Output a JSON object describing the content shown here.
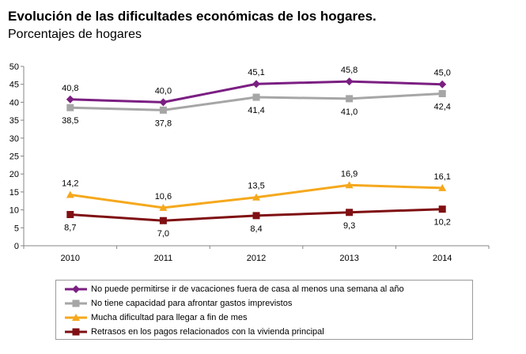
{
  "title": "Evolución de las dificultades económicas de los hogares.",
  "subtitle": "Porcentajes de hogares",
  "chart_data": {
    "type": "line",
    "x": [
      "2010",
      "2011",
      "2012",
      "2013",
      "2014"
    ],
    "ylim": [
      0,
      50
    ],
    "yticks": [
      0,
      5,
      10,
      15,
      20,
      25,
      30,
      35,
      40,
      45,
      50
    ],
    "grid": false,
    "legend_position": "bottom",
    "series": [
      {
        "name": "No puede permitirse ir de vacaciones fuera de casa al menos una semana al año",
        "values": [
          40.8,
          40.0,
          45.1,
          45.8,
          45.0
        ],
        "labels": [
          "40,8",
          "40,0",
          "45,1",
          "45,8",
          "45,0"
        ],
        "label_position": "above",
        "color": "#7b1f82",
        "marker": "diamond"
      },
      {
        "name": "No tiene capacidad para afrontar gastos imprevistos",
        "values": [
          38.5,
          37.8,
          41.4,
          41.0,
          42.4
        ],
        "labels": [
          "38,5",
          "37,8",
          "41,4",
          "41,0",
          "42,4"
        ],
        "label_position": "below",
        "color": "#a6a6a6",
        "marker": "square"
      },
      {
        "name": "Mucha dificultad para llegar a fin de mes",
        "values": [
          14.2,
          10.6,
          13.5,
          16.9,
          16.1
        ],
        "labels": [
          "14,2",
          "10,6",
          "13,5",
          "16,9",
          "16,1"
        ],
        "label_position": "above",
        "color": "#f5a81c",
        "marker": "triangle"
      },
      {
        "name": "Retrasos en los pagos relacionados con la vivienda principal",
        "values": [
          8.7,
          7.0,
          8.4,
          9.3,
          10.2
        ],
        "labels": [
          "8,7",
          "7,0",
          "8,4",
          "9,3",
          "10,2"
        ],
        "label_position": "below",
        "color": "#7f0f12",
        "marker": "square"
      }
    ]
  }
}
